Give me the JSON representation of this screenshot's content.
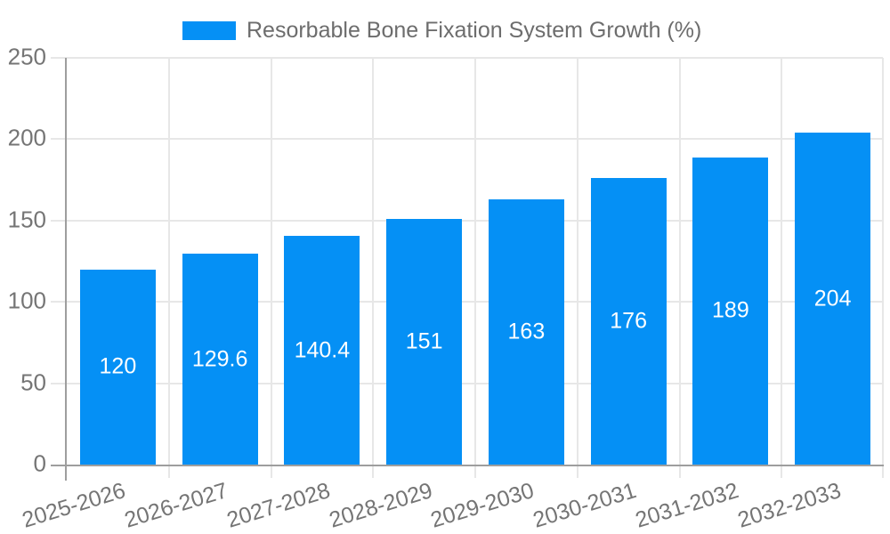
{
  "legend": {
    "label": "Resorbable Bone Fixation System Growth (%)"
  },
  "chart_data": {
    "type": "bar",
    "title": "Resorbable Bone Fixation System Growth (%)",
    "categories": [
      "2025-2026",
      "2026-2027",
      "2027-2028",
      "2028-2029",
      "2029-2030",
      "2030-2031",
      "2031-2032",
      "2032-2033"
    ],
    "series": [
      {
        "name": "Resorbable Bone Fixation System Growth (%)",
        "values": [
          120,
          129.6,
          140.4,
          151,
          163,
          176,
          189,
          204
        ]
      }
    ],
    "value_labels": [
      "120",
      "129.6",
      "140.4",
      "151",
      "163",
      "176",
      "189",
      "204"
    ],
    "xlabel": "",
    "ylabel": "",
    "ylim": [
      0,
      250
    ],
    "y_ticks": [
      0,
      50,
      100,
      150,
      200,
      250
    ],
    "y_tick_labels": [
      "0",
      "50",
      "100",
      "150",
      "200",
      "250"
    ],
    "grid": true,
    "legend_position": "top",
    "bar_label_position": "inside-center",
    "colors": {
      "bar": "#0590f5",
      "bar_label": "#ffffff",
      "axis_text": "#757575",
      "legend_text": "#6d6d6d",
      "grid_line": "#e7e7e7",
      "axis_line": "#9e9e9e",
      "background": "#ffffff"
    }
  }
}
